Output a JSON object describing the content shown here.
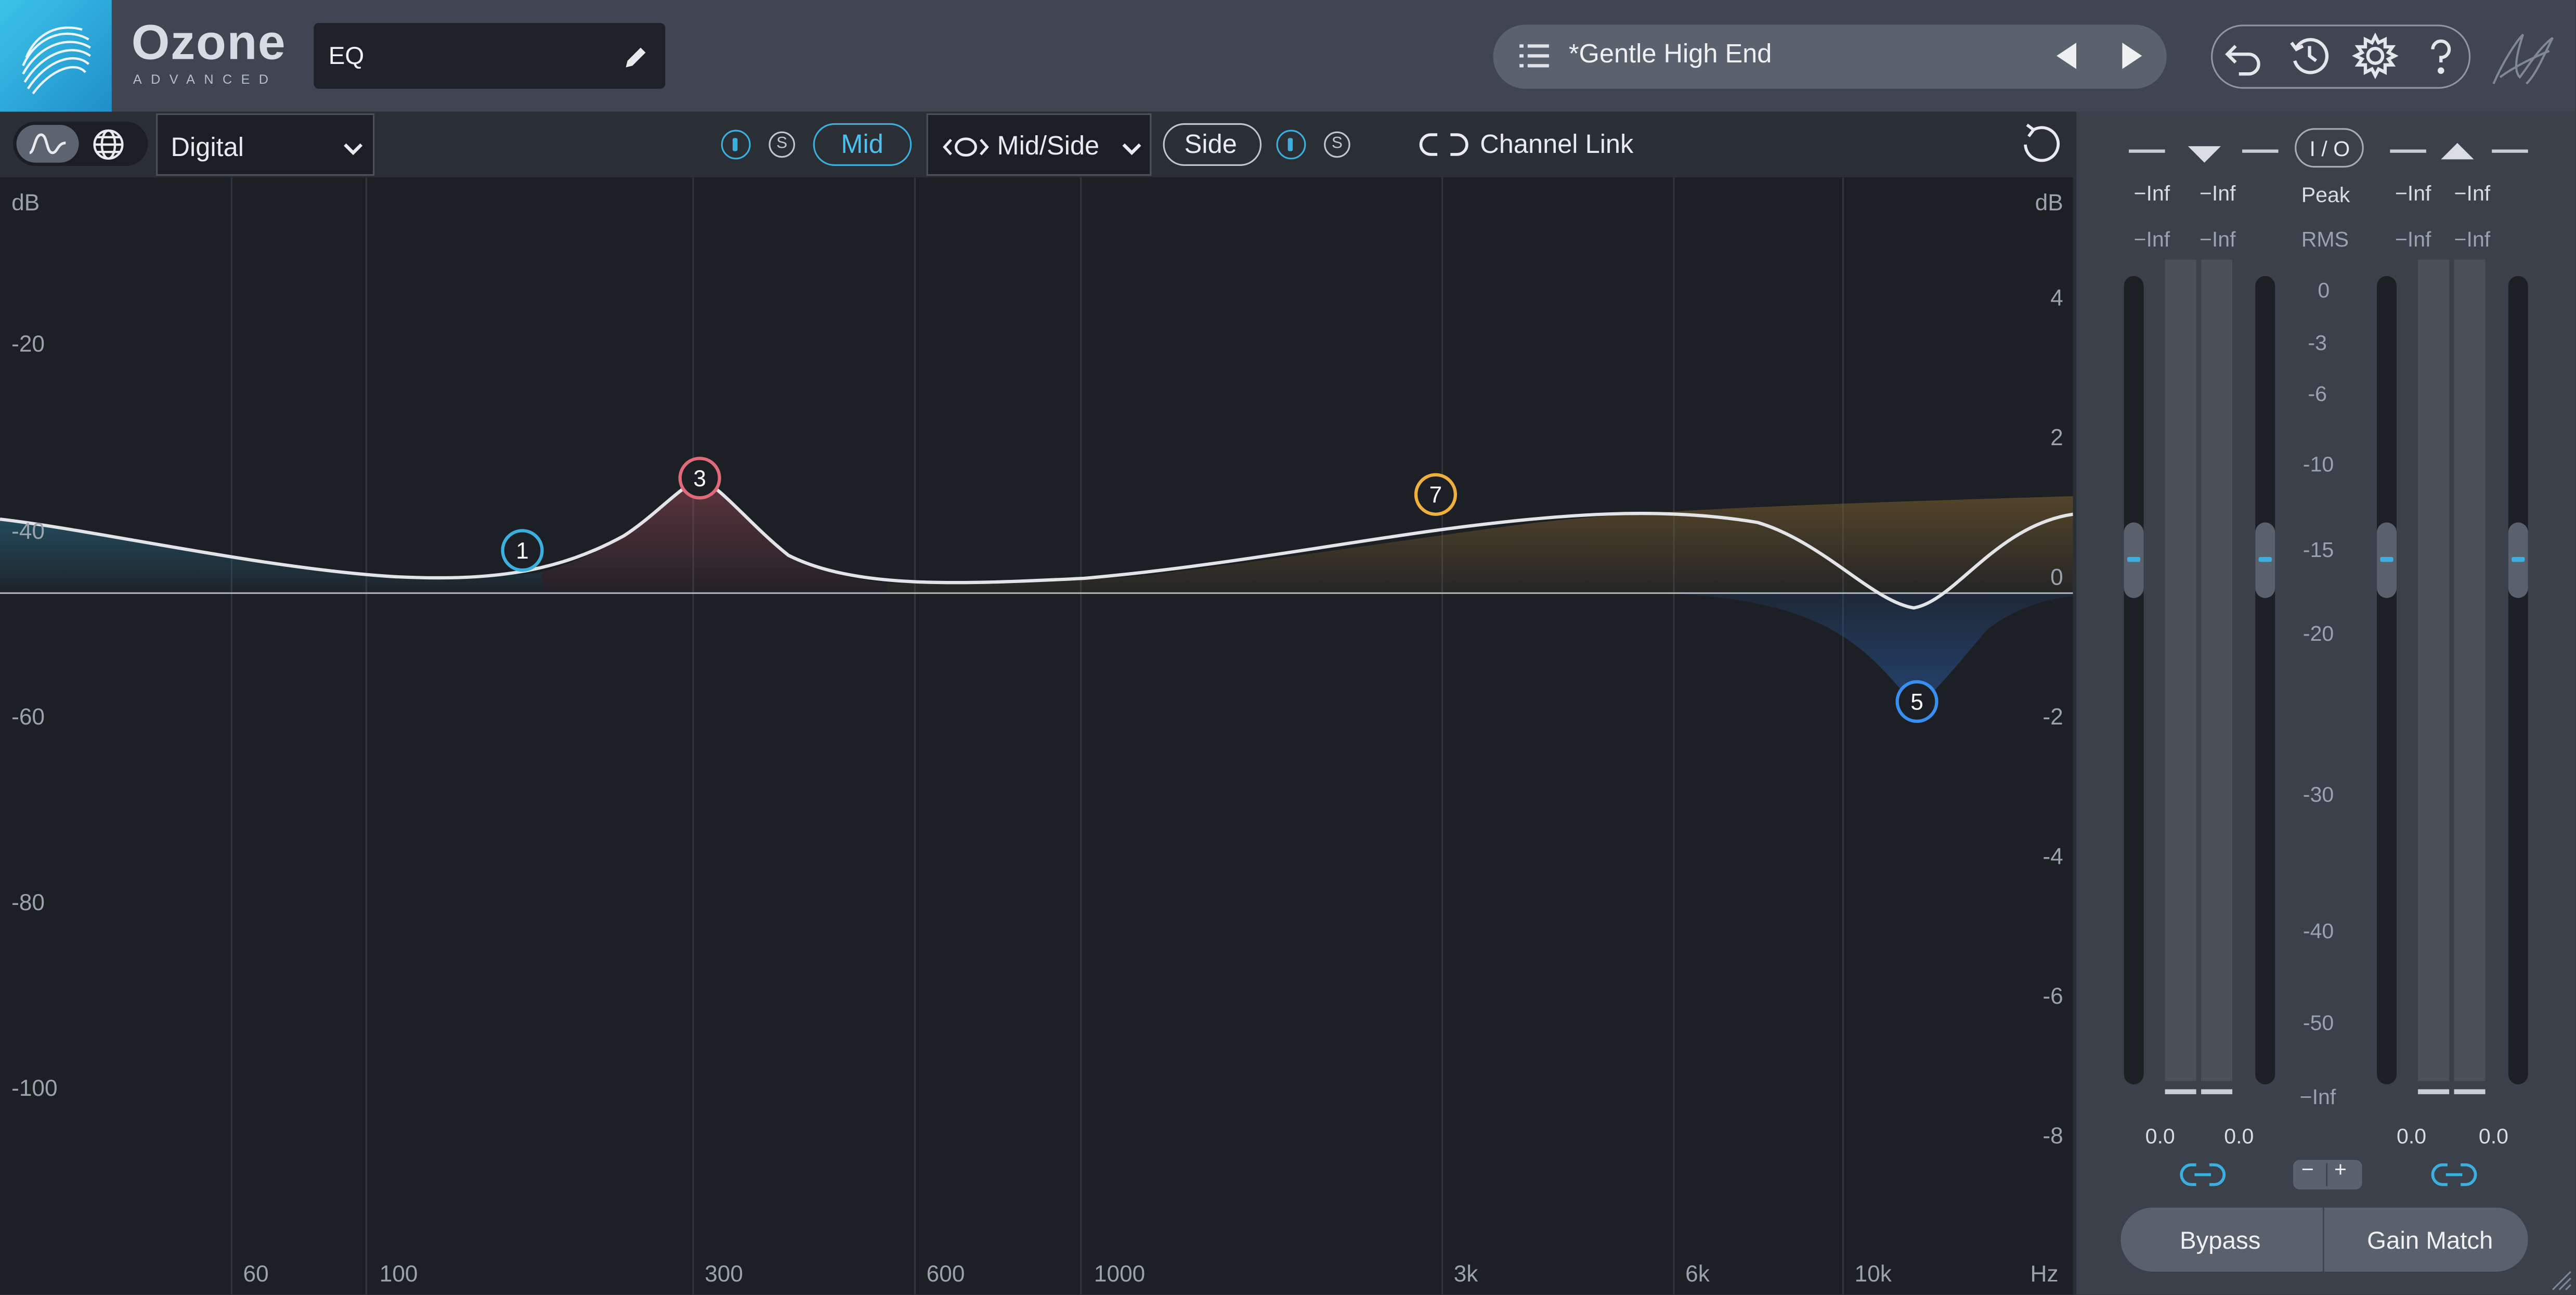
{
  "app": {
    "brand": "Ozone",
    "edition": "ADVANCED",
    "module_name": "EQ",
    "preset_name": "*Gentle High End"
  },
  "toolbar": {
    "processing_mode": "Digital",
    "mid_label": "Mid",
    "solo_letter": "S",
    "stereo_mode": "Mid/Side",
    "side_label": "Side",
    "channel_link_label": "Channel Link"
  },
  "graph": {
    "left_db_unit": "dB",
    "right_db_unit": "dB",
    "left_db_ticks": [
      "-20",
      "-40",
      "-60",
      "-80",
      "-100"
    ],
    "right_db_ticks": [
      "4",
      "2",
      "0",
      "-2",
      "-4",
      "-6",
      "-8"
    ],
    "freq_ticks": [
      "60",
      "100",
      "300",
      "600",
      "1000",
      "3k",
      "6k",
      "10k"
    ],
    "freq_unit": "Hz",
    "nodes": [
      {
        "id": "1",
        "color": "#3bb0e0"
      },
      {
        "id": "3",
        "color": "#e06a78"
      },
      {
        "id": "7",
        "color": "#f0b040"
      },
      {
        "id": "5",
        "color": "#3a8ef0"
      }
    ]
  },
  "io_panel": {
    "io_label": "I / O",
    "peak_label": "Peak",
    "rms_label": "RMS",
    "in_peak_l": "−Inf",
    "in_peak_r": "−Inf",
    "in_rms_l": "−Inf",
    "in_rms_r": "−Inf",
    "out_peak_l": "−Inf",
    "out_peak_r": "−Inf",
    "out_rms_l": "−Inf",
    "out_rms_r": "−Inf",
    "scale": [
      "0",
      "-3",
      "-6",
      "-10",
      "-15",
      "-20",
      "-30",
      "-40",
      "-50",
      "−Inf"
    ],
    "in_gain_l": "0.0",
    "in_gain_r": "0.0",
    "out_gain_l": "0.0",
    "out_gain_r": "0.0",
    "minus": "−",
    "plus": "+",
    "bypass_label": "Bypass",
    "gain_match_label": "Gain Match"
  }
}
